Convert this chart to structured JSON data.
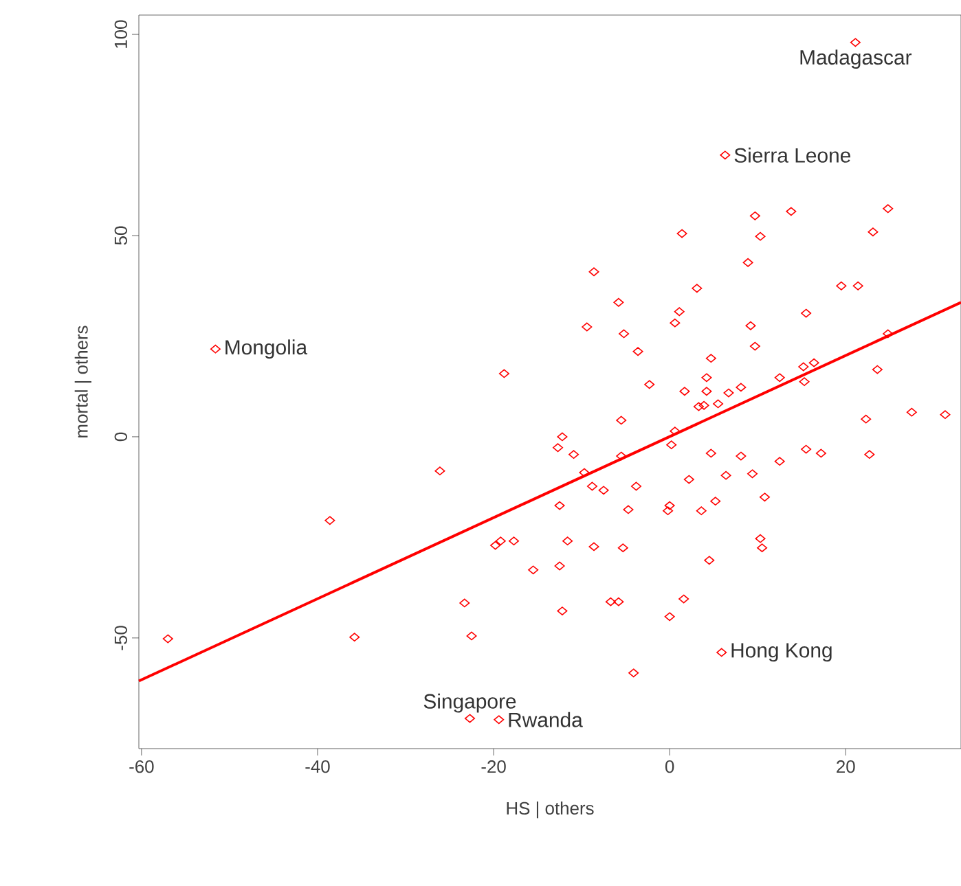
{
  "chart_data": {
    "type": "scatter",
    "xlabel": "HS | others",
    "ylabel": "mortal | others",
    "xlim": [
      -60.3,
      33.1
    ],
    "ylim": [
      -77.5,
      104.8
    ],
    "xticks": [
      -60,
      -40,
      -20,
      0,
      20
    ],
    "yticks": [
      -50,
      0,
      50,
      100
    ],
    "series": [
      {
        "color": "#ff0000",
        "marker": "diamond",
        "x": [
          21.1,
          6.3,
          -51.6,
          5.9,
          -22.7,
          -19.4,
          -57.0,
          -38.6,
          -35.8,
          -26.1,
          -23.3,
          -22.5,
          -18.8,
          -19.8,
          -19.2,
          -17.7,
          -15.5,
          -12.5,
          -12.5,
          -12.2,
          -5.5,
          -12.2,
          -12.7,
          -10.9,
          0.6,
          0.2,
          -5.5,
          -9.7,
          -8.8,
          -7.5,
          -3.8,
          -4.7,
          0,
          -0.2,
          3.6,
          5.2,
          2.2,
          6.4,
          4.7,
          8.1,
          9.4,
          10.8,
          12.5,
          15.5,
          17.2,
          22.7,
          22.3,
          27.5,
          31.3,
          -11.6,
          -8.6,
          -5.3,
          4.5,
          10.3,
          10.5,
          -6.7,
          -5.8,
          1.6,
          0,
          -4.1,
          9.7,
          13.8,
          24.8,
          1.4,
          10.3,
          23.1,
          -8.6,
          8.9,
          -5.8,
          3.1,
          19.5,
          21.4,
          -9.4,
          -5.2,
          1.1,
          0.6,
          9.2,
          15.5,
          9.7,
          -3.6,
          4.7,
          -2.3,
          1.7,
          4.2,
          4.2,
          6.7,
          8.1,
          12.5,
          15.2,
          16.4,
          15.3,
          23.6,
          24.8,
          3.3,
          3.9,
          5.5
        ],
        "values": [
          98.0,
          70.0,
          21.8,
          -53.6,
          -70.0,
          -70.3,
          -50.2,
          -20.8,
          -49.8,
          -8.5,
          -41.3,
          -49.5,
          15.7,
          -27.0,
          -25.9,
          -25.9,
          -33.1,
          -17.1,
          -32.1,
          -43.3,
          4.1,
          0,
          -2.7,
          -4.4,
          1.4,
          -2.0,
          -4.8,
          -8.9,
          -12.3,
          -13.3,
          -12.3,
          -18.1,
          -17.1,
          -18.4,
          -18.4,
          -16.0,
          -10.6,
          -9.6,
          -4.1,
          -4.8,
          -9.2,
          -15.0,
          -6.1,
          -3.1,
          -4.1,
          -4.4,
          4.4,
          6.1,
          5.5,
          -25.9,
          -27.3,
          -27.6,
          -30.7,
          -25.3,
          -27.6,
          -41.0,
          -41.0,
          -40.3,
          -44.7,
          -58.7,
          54.9,
          56.0,
          56.7,
          50.5,
          49.8,
          50.9,
          41.0,
          43.3,
          33.4,
          36.9,
          37.5,
          37.5,
          27.3,
          25.6,
          31.1,
          28.3,
          27.6,
          30.7,
          22.5,
          21.2,
          19.5,
          13.0,
          11.3,
          14.7,
          11.3,
          10.9,
          12.3,
          14.7,
          17.4,
          18.4,
          13.7,
          16.7,
          25.6,
          7.5,
          7.8,
          8.2
        ]
      },
      {
        "type": "line",
        "color": "#ff0000",
        "x": [
          -60.3,
          33.1
        ],
        "values": [
          -60.7,
          33.4
        ]
      }
    ],
    "annotations": [
      {
        "text": "Madagascar",
        "x": 21.1,
        "y": 98.0
      },
      {
        "text": "Sierra Leone",
        "x": 6.3,
        "y": 70.0
      },
      {
        "text": "Mongolia",
        "x": -51.6,
        "y": 21.8
      },
      {
        "text": "Hong Kong",
        "x": 5.9,
        "y": -53.6
      },
      {
        "text": "Singapore",
        "x": -22.7,
        "y": -70.0
      },
      {
        "text": "Rwanda",
        "x": -19.4,
        "y": -70.3
      }
    ]
  }
}
